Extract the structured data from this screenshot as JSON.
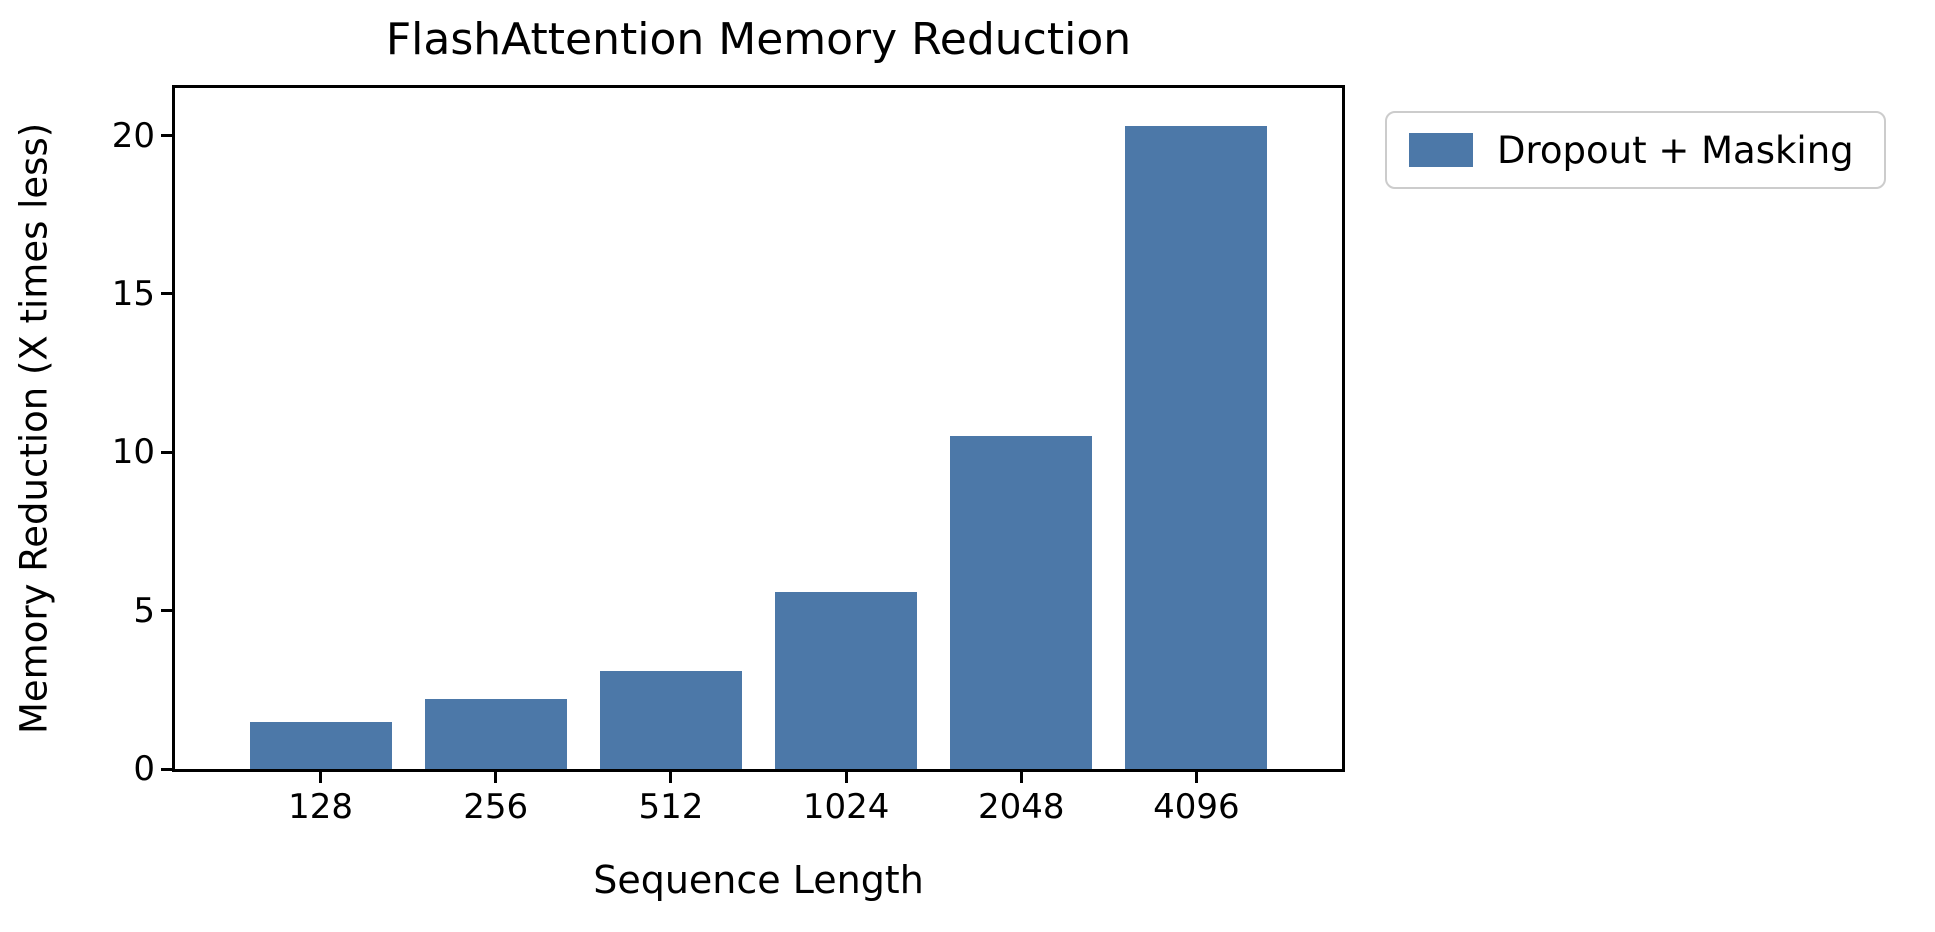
{
  "chart_data": {
    "type": "bar",
    "title": "FlashAttention Memory Reduction",
    "xlabel": "Sequence Length",
    "ylabel": "Memory Reduction (X times less)",
    "categories": [
      "128",
      "256",
      "512",
      "1024",
      "2048",
      "4096"
    ],
    "series": [
      {
        "name": "Dropout + Masking",
        "values": [
          1.5,
          2.2,
          3.1,
          5.6,
          10.5,
          20.3
        ]
      }
    ],
    "yticks": [
      0,
      5,
      10,
      15,
      20
    ],
    "ylim": [
      0,
      21.5
    ],
    "bar_color": "#4C78A8",
    "grid": false,
    "legend_position": "outside-upper-right"
  },
  "legend": {
    "items": [
      {
        "label": "Dropout + Masking",
        "color": "#4C78A8"
      }
    ]
  }
}
